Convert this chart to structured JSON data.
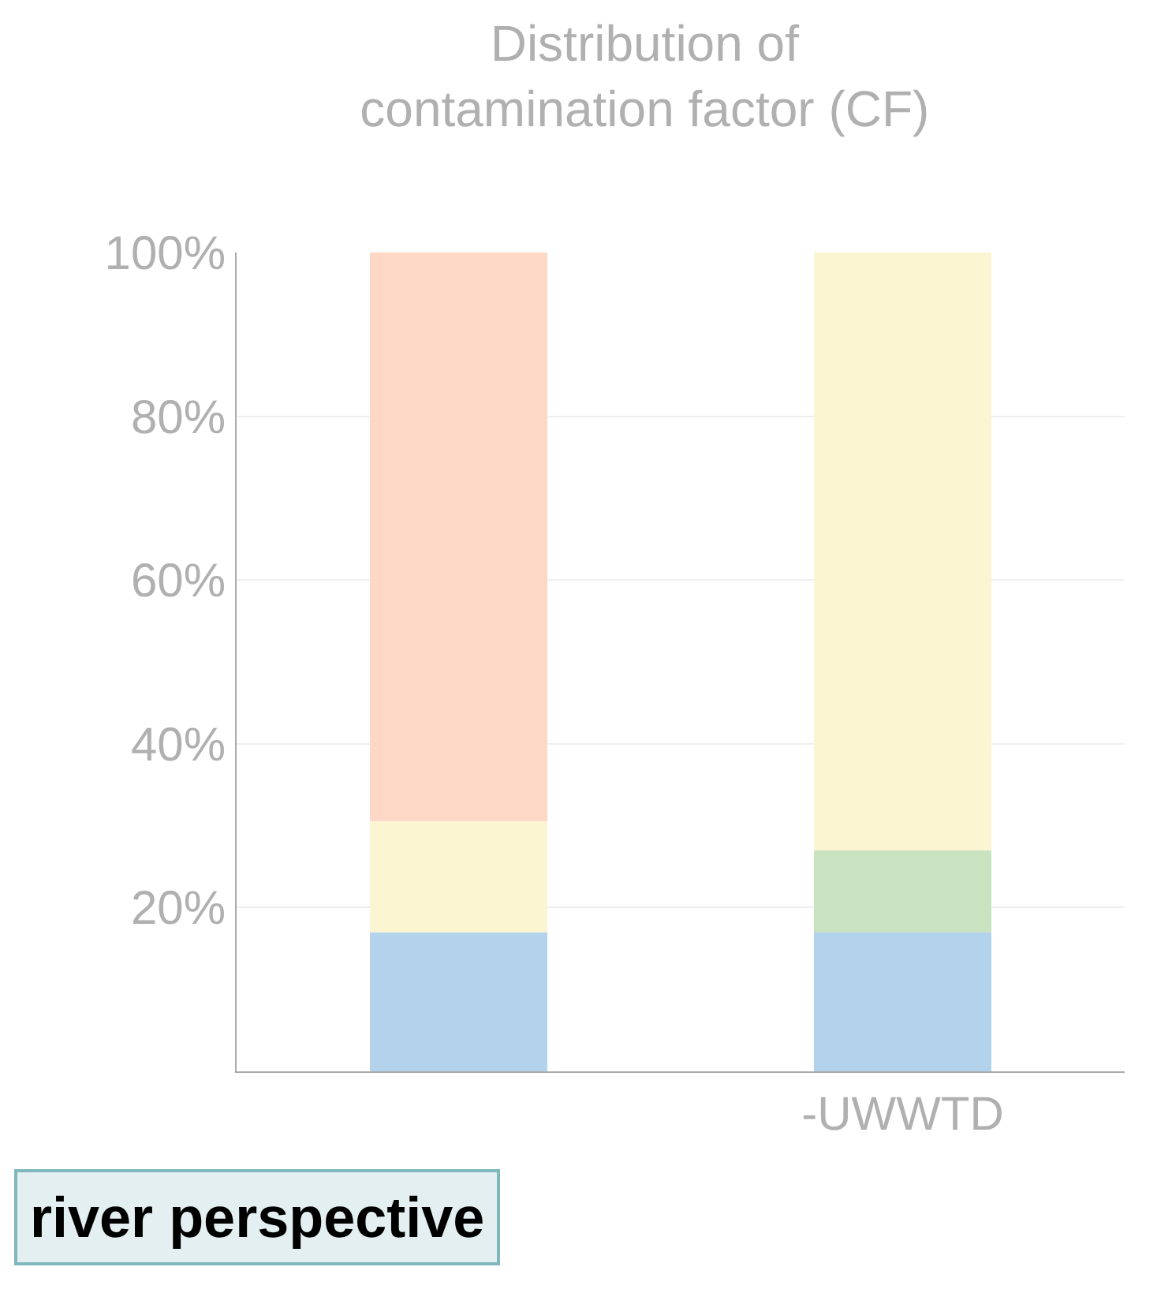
{
  "chart_data": {
    "type": "bar",
    "stacked": true,
    "title": "Distribution of\ncontamination factor (CF)",
    "categories": [
      null,
      "-UWWTD"
    ],
    "series": [
      {
        "color": "#b3d3ec",
        "values": [
          17,
          17
        ]
      },
      {
        "color": "#c9e3c1",
        "values": [
          0,
          10
        ]
      },
      {
        "color": "#fcf5d2",
        "values": [
          13.5,
          73
        ]
      },
      {
        "color": "#fed8c6",
        "values": [
          69.5,
          0
        ]
      }
    ],
    "ylim": [
      0,
      100
    ],
    "yticks": [
      {
        "value": 20,
        "label": "20%"
      },
      {
        "value": 40,
        "label": "40%"
      },
      {
        "value": 60,
        "label": "60%"
      },
      {
        "value": 80,
        "label": "80%"
      },
      {
        "value": 100,
        "label": "100%"
      }
    ],
    "grid": "y",
    "annotations": [
      "river perspective"
    ]
  }
}
